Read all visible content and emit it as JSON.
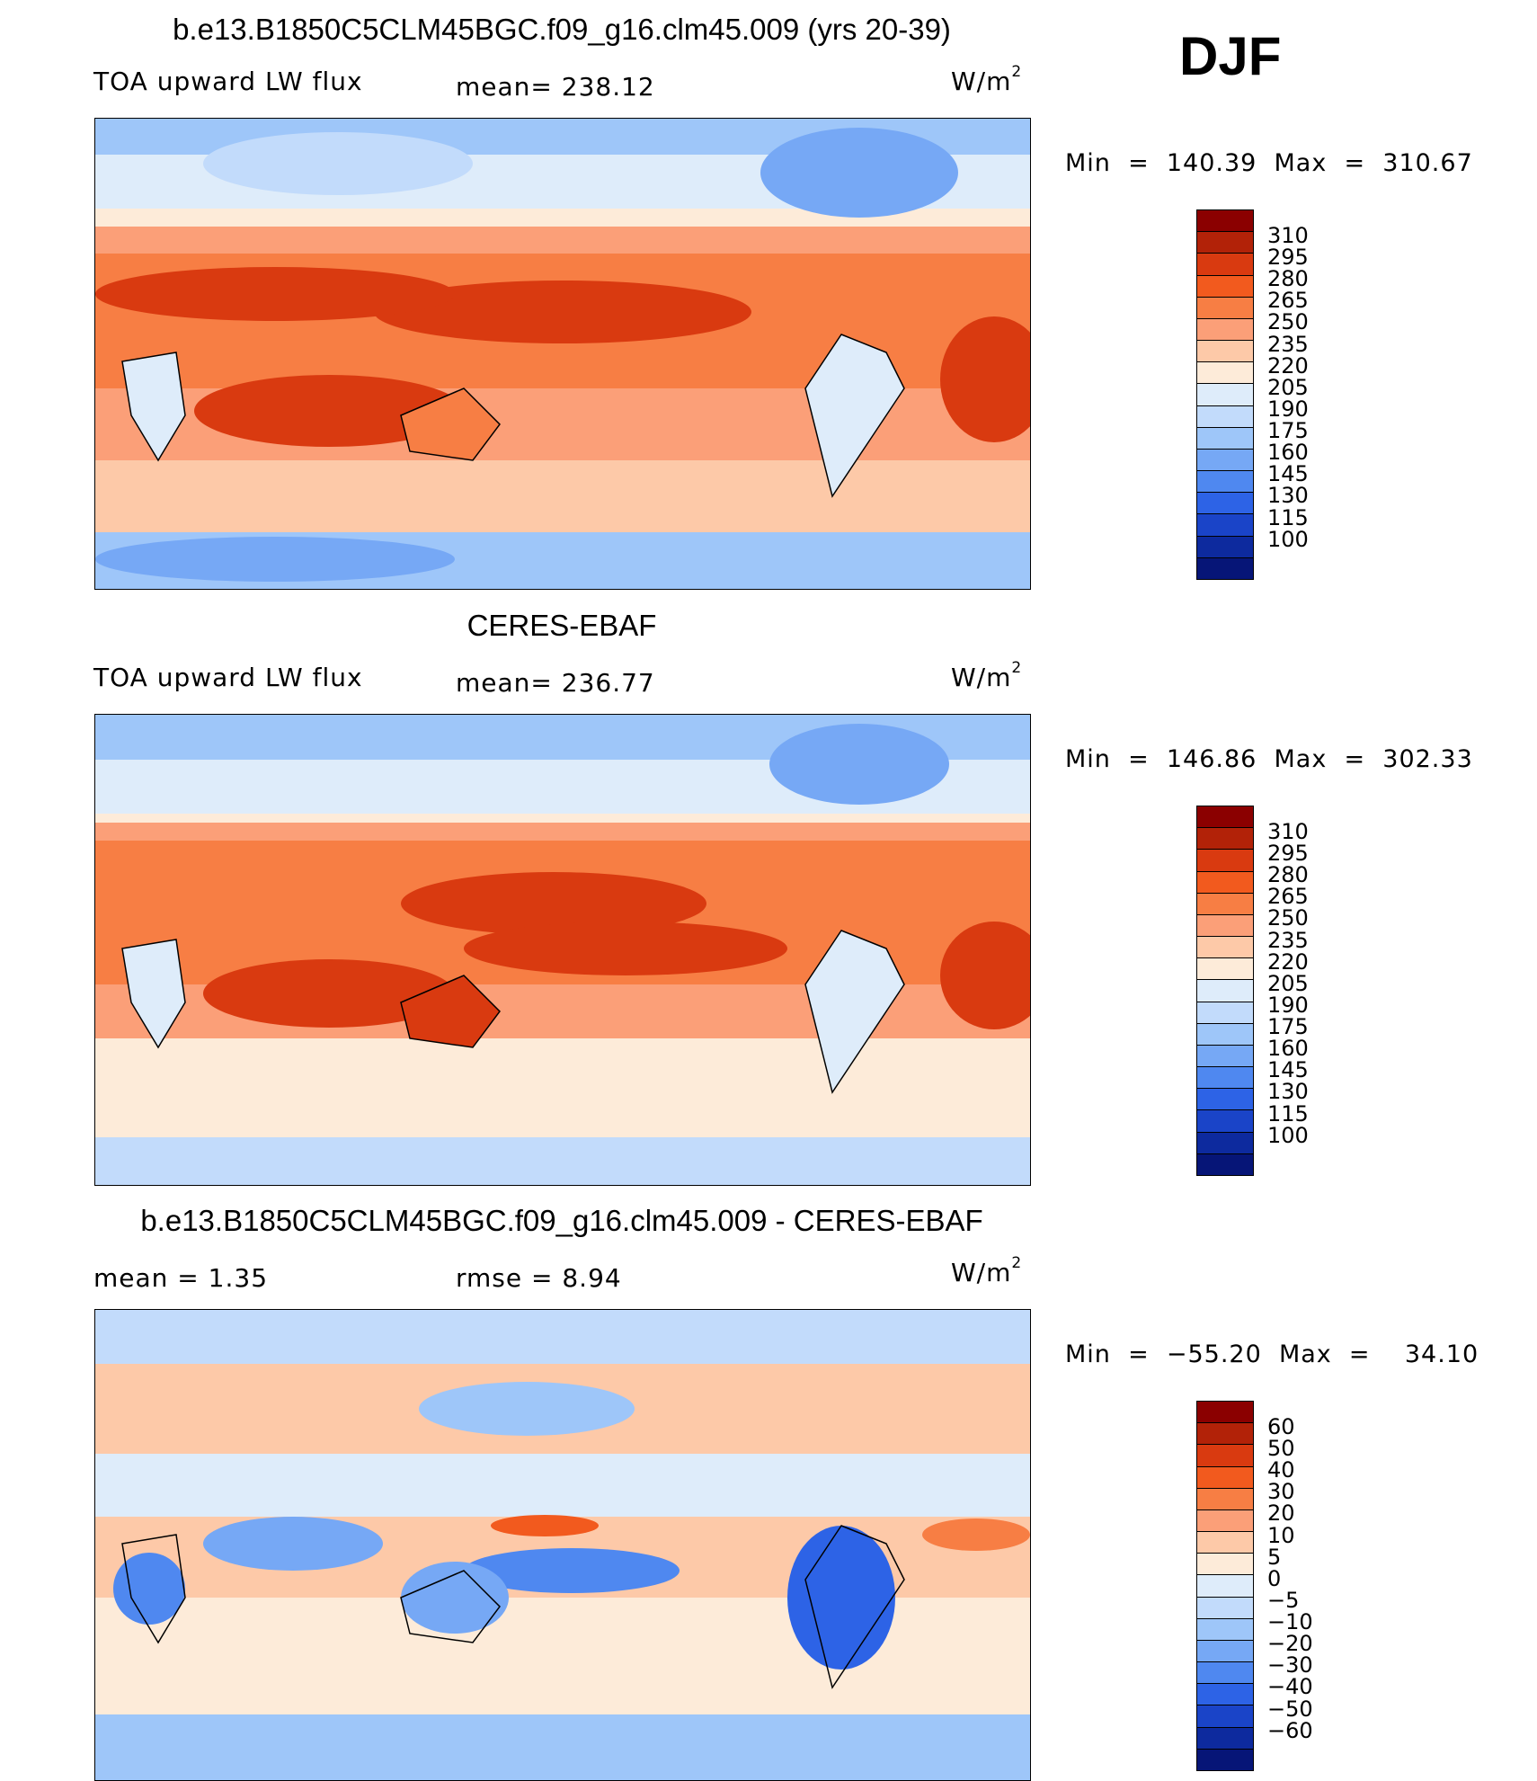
{
  "season": "DJF",
  "panels": [
    {
      "title": "b.e13.B1850C5CLM45BGC.f09_g16.clm45.009 (yrs 20-39)",
      "left_label": "TOA upward LW flux",
      "center_label": "mean=  238.12",
      "units": "W/m",
      "units_sup": "2",
      "minmax": "Min  =  140.39  Max  =  310.67",
      "colorbar_labels": [
        "310",
        "295",
        "280",
        "265",
        "250",
        "235",
        "220",
        "205",
        "190",
        "175",
        "160",
        "145",
        "130",
        "115",
        "100"
      ],
      "colors": [
        "#8b0000",
        "#b22208",
        "#d93a10",
        "#f25a1e",
        "#f77e44",
        "#fb9f78",
        "#fdc9a8",
        "#fdebd9",
        "#deecfa",
        "#c2dbfb",
        "#9ec6f9",
        "#76a8f5",
        "#4f88f0",
        "#2d63e6",
        "#1a44c8",
        "#0d2a9e",
        "#061577"
      ]
    },
    {
      "title": "CERES-EBAF",
      "left_label": "TOA upward LW flux",
      "center_label": "mean=  236.77",
      "units": "W/m",
      "units_sup": "2",
      "minmax": "Min  =  146.86  Max  =  302.33",
      "colorbar_labels": [
        "310",
        "295",
        "280",
        "265",
        "250",
        "235",
        "220",
        "205",
        "190",
        "175",
        "160",
        "145",
        "130",
        "115",
        "100"
      ],
      "colors": [
        "#8b0000",
        "#b22208",
        "#d93a10",
        "#f25a1e",
        "#f77e44",
        "#fb9f78",
        "#fdc9a8",
        "#fdebd9",
        "#deecfa",
        "#c2dbfb",
        "#9ec6f9",
        "#76a8f5",
        "#4f88f0",
        "#2d63e6",
        "#1a44c8",
        "#0d2a9e",
        "#061577"
      ]
    },
    {
      "title": "b.e13.B1850C5CLM45BGC.f09_g16.clm45.009 - CERES-EBAF",
      "left_label": "mean  =     1.35",
      "center_label": "rmse  =     8.94",
      "units": "W/m",
      "units_sup": "2",
      "minmax": "Min  =  −55.20  Max  =    34.10",
      "colorbar_labels": [
        "60",
        "50",
        "40",
        "30",
        "20",
        "10",
        "5",
        "0",
        "−5",
        "−10",
        "−20",
        "−30",
        "−40",
        "−50",
        "−60"
      ],
      "colors": [
        "#8b0000",
        "#b22208",
        "#d93a10",
        "#f25a1e",
        "#f77e44",
        "#fb9f78",
        "#fdc9a8",
        "#fdebd9",
        "#deecfa",
        "#c2dbfb",
        "#9ec6f9",
        "#76a8f5",
        "#4f88f0",
        "#2d63e6",
        "#1a44c8",
        "#0d2a9e",
        "#061577"
      ]
    }
  ]
}
